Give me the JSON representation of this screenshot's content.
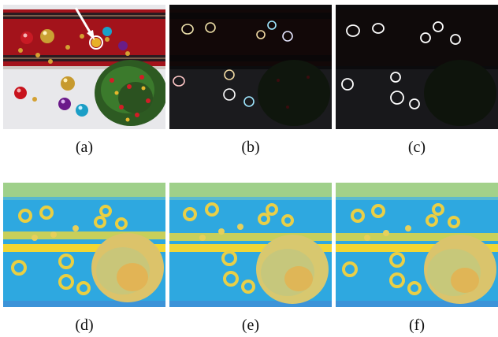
{
  "figure": {
    "panels": [
      {
        "id": "a",
        "caption": "(a)",
        "kind": "photo"
      },
      {
        "id": "b",
        "caption": "(b)",
        "kind": "dark-outline-color"
      },
      {
        "id": "c",
        "caption": "(c)",
        "kind": "dark-outline-white"
      },
      {
        "id": "d",
        "caption": "(d)",
        "kind": "heatmap"
      },
      {
        "id": "e",
        "caption": "(e)",
        "kind": "heatmap"
      },
      {
        "id": "f",
        "caption": "(f)",
        "kind": "heatmap"
      }
    ],
    "colors": {
      "red_runner": "#a0121a",
      "stripe_dark": "#2c1b20",
      "floor": "#e9e9ec",
      "tree_green": "#2e5b23",
      "heat_bg": "#2ea8e0",
      "heat_hot": "#f0d43a",
      "heat_mid": "#d9cf58"
    }
  }
}
